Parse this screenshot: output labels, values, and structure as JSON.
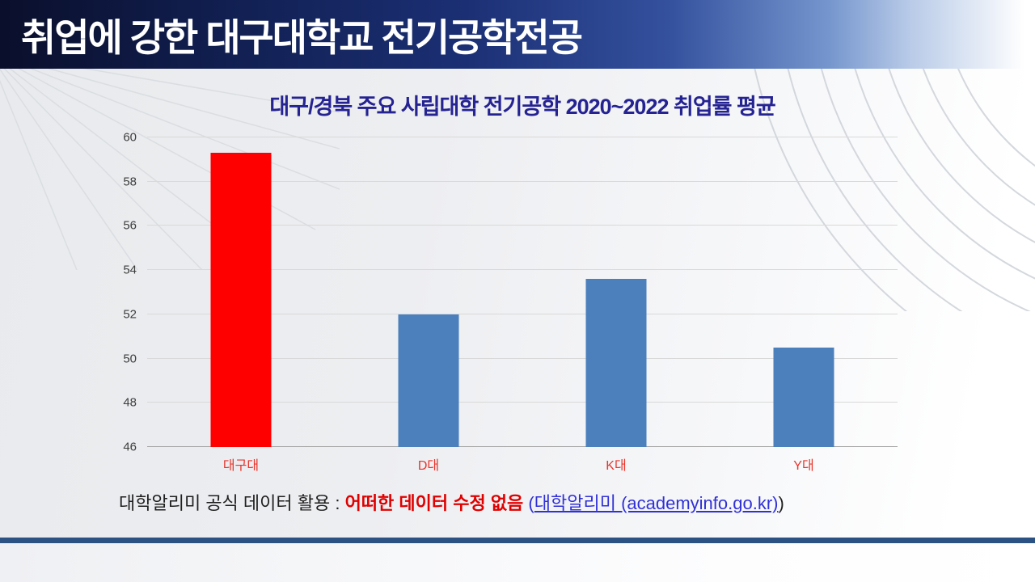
{
  "header": {
    "title": "취업에 강한 대구대학교 전기공학전공"
  },
  "chart_data": {
    "type": "bar",
    "title": "대구/경북 주요 사립대학  전기공학 2020~2022 취업률 평균",
    "categories": [
      "대구대",
      "D대",
      "K대",
      "Y대"
    ],
    "values": [
      59.3,
      52.0,
      53.6,
      50.5
    ],
    "bar_colors": [
      "#ff0000",
      "#4c80bd",
      "#4c80bd",
      "#4c80bd"
    ],
    "highlight_category": "대구대",
    "ylim": [
      46,
      60
    ],
    "yticks": [
      46,
      48,
      50,
      52,
      54,
      56,
      58,
      60
    ],
    "grid": true,
    "legend": false,
    "title_color": "#252392",
    "category_label_color": "#e8352c",
    "tick_label_color": "#3d3d3d"
  },
  "source_note": {
    "prefix": "대학알리미 공식 데이터 활용 : ",
    "emphasis": "어떠한 데이터 수정 없음",
    "open_paren": " (",
    "link_text": "대학알리미  (academyinfo.go.kr)",
    "close_paren": ")",
    "emphasis_color": "#e00000",
    "link_color": "#3030d8"
  },
  "theme": {
    "header_navy": "#111f51",
    "bottom_bar_color": "#2b5283"
  }
}
